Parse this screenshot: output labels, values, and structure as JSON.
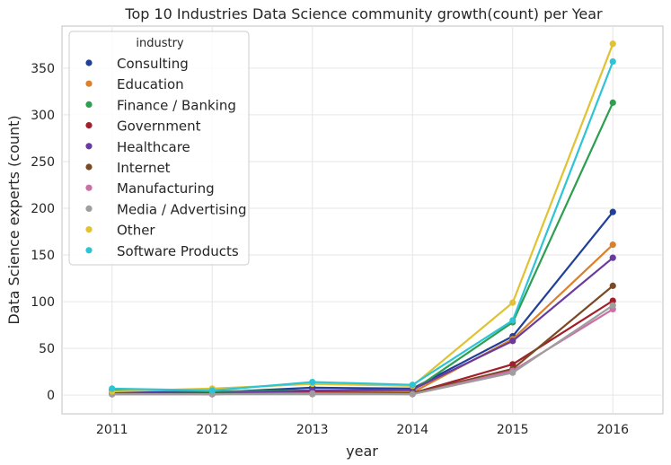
{
  "chart_data": {
    "type": "line",
    "title": "Top 10 Industries Data Science community growth(count) per Year",
    "xlabel": "year",
    "ylabel": "Data Science experts (count)",
    "x": [
      2011,
      2012,
      2013,
      2014,
      2015,
      2016
    ],
    "xlim": [
      2010.5,
      2016.5
    ],
    "ylim": [
      -20,
      395
    ],
    "yticks": [
      0,
      50,
      100,
      150,
      200,
      250,
      300,
      350
    ],
    "grid": true,
    "legend": {
      "title": "industry",
      "placement": "top-left"
    },
    "series": [
      {
        "name": "Consulting",
        "color": "#1f3f99",
        "values": [
          5,
          3,
          8,
          7,
          63,
          196
        ]
      },
      {
        "name": "Education",
        "color": "#d9812b",
        "values": [
          2,
          2,
          4,
          3,
          60,
          161
        ]
      },
      {
        "name": "Finance / Banking",
        "color": "#2e9e4f",
        "values": [
          6,
          4,
          5,
          5,
          78,
          313
        ]
      },
      {
        "name": "Government",
        "color": "#a11f2a",
        "values": [
          2,
          1,
          3,
          2,
          33,
          101
        ]
      },
      {
        "name": "Healthcare",
        "color": "#6a3b9e",
        "values": [
          3,
          2,
          5,
          6,
          58,
          147
        ]
      },
      {
        "name": "Internet",
        "color": "#7a4a24",
        "values": [
          1,
          2,
          2,
          2,
          28,
          117
        ]
      },
      {
        "name": "Manufacturing",
        "color": "#cc6fa6",
        "values": [
          1,
          1,
          2,
          1,
          26,
          92
        ]
      },
      {
        "name": "Media / Advertising",
        "color": "#9e9e9e",
        "values": [
          1,
          1,
          1,
          1,
          24,
          96
        ]
      },
      {
        "name": "Other",
        "color": "#e0c232",
        "values": [
          4,
          7,
          12,
          10,
          99,
          376
        ]
      },
      {
        "name": "Software Products",
        "color": "#2ec4d4",
        "values": [
          7,
          5,
          14,
          11,
          80,
          357
        ]
      }
    ]
  }
}
